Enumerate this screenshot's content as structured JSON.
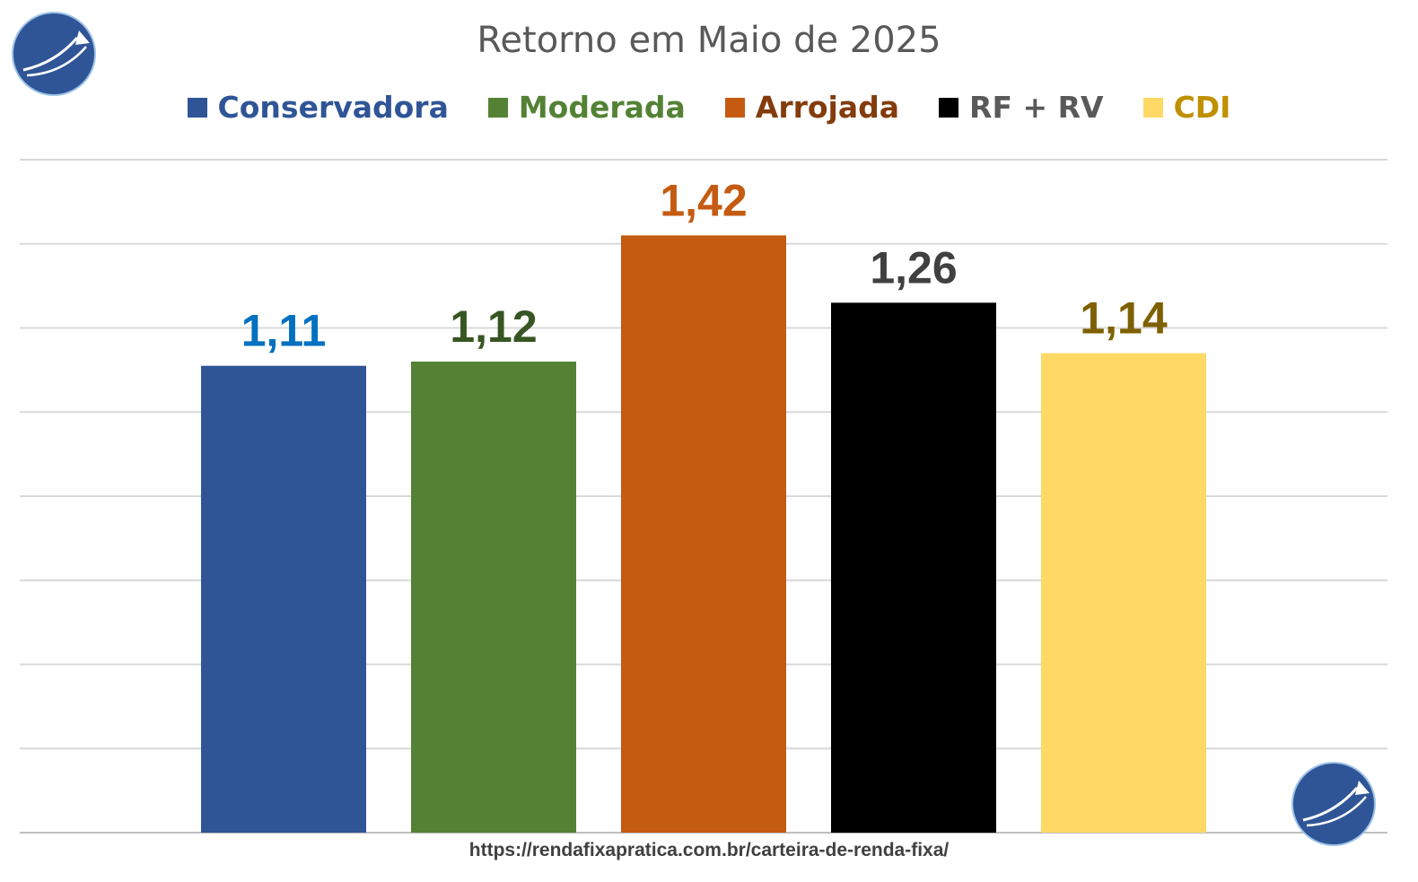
{
  "chart_data": {
    "type": "bar",
    "title": "Retorno em Maio de 2025",
    "categories": [
      "Conservadora",
      "Moderada",
      "Arrojada",
      "RF + RV",
      "CDI"
    ],
    "values": [
      1.11,
      1.12,
      1.42,
      1.26,
      1.14
    ],
    "value_labels": [
      "1,11",
      "1,12",
      "1,42",
      "1,26",
      "1,14"
    ],
    "bar_colors": [
      "#2F5597",
      "#548235",
      "#C55A11",
      "#000000",
      "#FFD966"
    ],
    "label_colors": [
      "#0070C0",
      "#375623",
      "#C55A11",
      "#404040",
      "#7F6000"
    ],
    "legend_text_colors": [
      "#2F5597",
      "#548235",
      "#843C0C",
      "#595959",
      "#BF9000"
    ],
    "legend_position": "top",
    "ylim": [
      0,
      1.6
    ],
    "grid": true
  },
  "footer_url": "https://rendafixapratica.com.br/carteira-de-renda-fixa/",
  "logo_icon": "arrow-arc-logo-icon"
}
